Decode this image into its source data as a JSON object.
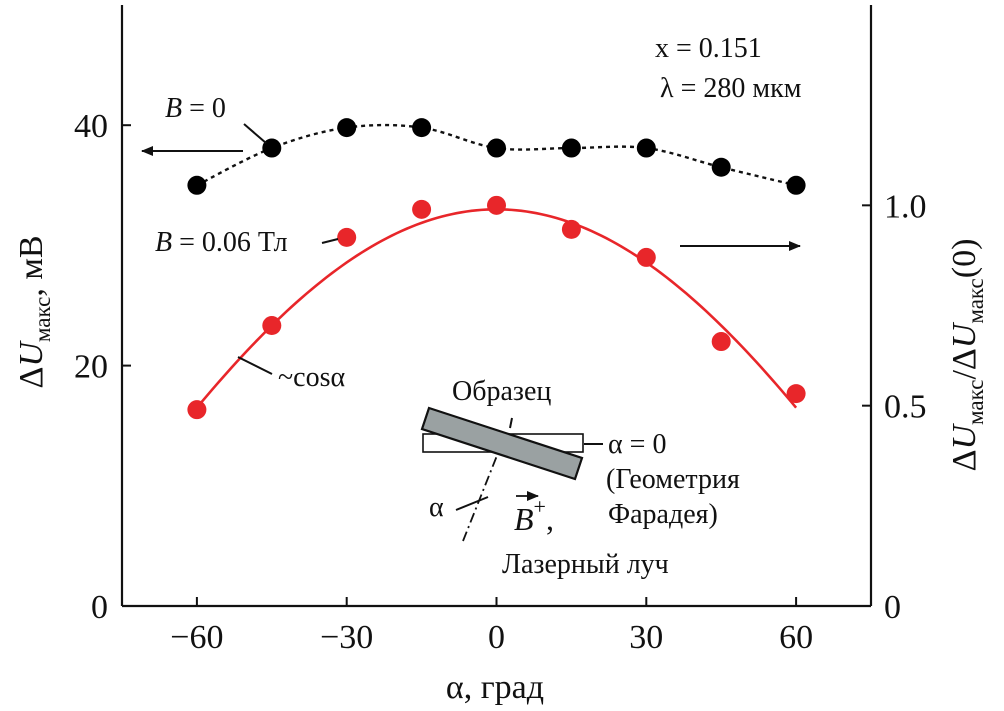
{
  "chart_data": {
    "type": "scatter",
    "params": {
      "x_line": "x = 0.151",
      "lambda_line": "λ = 280 мкм"
    },
    "xlabel": "α, град",
    "ylabel": {
      "delta": "Δ",
      "U": "U",
      "sub": "макс",
      "rest": ", мВ"
    },
    "y2label": {
      "delta1": "Δ",
      "U1": "U",
      "sub1": "макс",
      "slash": "/",
      "delta2": "Δ",
      "U2": "U",
      "sub2": "макс",
      "tail": "(0)"
    },
    "xlim": [
      -75,
      75
    ],
    "ylim": [
      0,
      50
    ],
    "y2lim": [
      0,
      1.5
    ],
    "x_ticks": [
      -60,
      -30,
      0,
      30,
      60
    ],
    "x_tick_labels": [
      "−60",
      "−30",
      "0",
      "30",
      "60"
    ],
    "y_ticks": [
      0,
      20,
      40
    ],
    "y_tick_labels": [
      "0",
      "20",
      "40"
    ],
    "y2_ticks": [
      0,
      0.5,
      1.0
    ],
    "y2_tick_labels": [
      "0",
      "0.5",
      "1.0"
    ],
    "grid": false,
    "series": [
      {
        "name": "B = 0",
        "axis": "left",
        "color": "#000000",
        "line_style": "dotted",
        "x": [
          -60,
          -45,
          -30,
          -15,
          0,
          15,
          30,
          45,
          60
        ],
        "y": [
          35.0,
          38.1,
          39.8,
          39.8,
          38.1,
          38.1,
          38.1,
          36.5,
          35.0
        ]
      },
      {
        "name": "B = 0.06 Тл",
        "axis": "right",
        "color": "#e8262a",
        "line_style": "none",
        "x": [
          -60,
          -45,
          -30,
          -15,
          0,
          15,
          30,
          45,
          60
        ],
        "y": [
          0.49,
          0.7,
          0.92,
          0.99,
          1.0,
          0.94,
          0.87,
          0.66,
          0.53
        ]
      }
    ],
    "fit": {
      "name": "~cosα",
      "axis": "right",
      "color": "#e8262a",
      "amplitude": 0.99
    },
    "annotations": {
      "b0": {
        "var": "B",
        "rest": " = 0"
      },
      "b006": {
        "var": "B",
        "rest": " = 0.06 Тл"
      },
      "cos": "~cosα"
    },
    "inset": {
      "sample": "Образец",
      "alpha0": "α = 0",
      "geometry1": "(Геометрия",
      "geometry2": "Фарадея)",
      "alpha": "α",
      "bplus": {
        "var": "B",
        "sup": "+",
        "comma": ","
      },
      "laser": "Лазерный луч"
    }
  }
}
